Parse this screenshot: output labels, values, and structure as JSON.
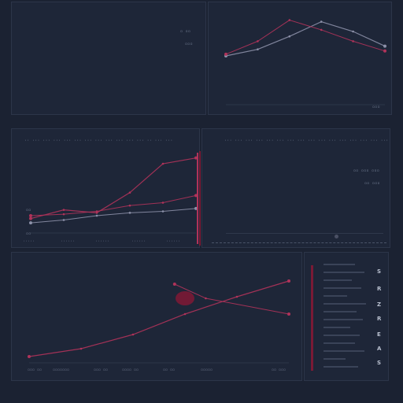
{
  "colors": {
    "background": "#1b2232",
    "panel": "#1e2638",
    "grid": "#2c3549",
    "series_primary": "#b0335a",
    "series_secondary": "#8c90a8",
    "accent_dark_red": "#7a1a35",
    "text": "#7f8aa0"
  },
  "panels": {
    "top_left": {
      "labels": [
        "▫ ▫▫",
        "▫▫▫"
      ]
    },
    "top_right": {
      "footer_label": "▫▫▫"
    },
    "mid_left": {
      "header_label": "·· ··· ··· ··· ··· ··· ··· ··· ··· ··· ··· ··· ·· ··· ···",
      "y_labels": [
        "▫▫",
        "▫▫"
      ],
      "x_labels": [
        "·····",
        "······",
        "······",
        "······",
        "······"
      ],
      "side_label": "▫▫ ▫▫"
    },
    "mid_right": {
      "header_label": "··· ··· ··· ··· ··· ··· ··· ··· ··· ··· ··· ··· ··· ··· ··· ···",
      "labels": [
        "▫▫ ▫▫▫ ▫▫▫",
        "▫▫ ▫▫▫"
      ]
    },
    "bottom_left": {
      "x_labels": [
        "▫▫▫ ▫▫",
        "▫▫▫▫▫▫▫",
        "▫▫▫ ▫▫",
        "▫▫▫▫ ▫▫",
        "▫▫ ▫▫",
        "▫▫▫▫▫",
        "▫▫ ▫▫▫"
      ]
    },
    "bottom_right": {
      "glyphs": [
        "S",
        "R",
        "Z",
        "R",
        "E",
        "A",
        "S"
      ]
    }
  },
  "chart_data": [
    {
      "type": "line",
      "series": [
        {
          "values": [
            [
              0,
              3.0
            ],
            [
              1,
              3.4
            ],
            [
              2,
              4.2
            ],
            [
              3,
              5.1
            ],
            [
              4,
              4.5
            ],
            [
              5,
              3.6
            ]
          ]
        },
        {
          "values": [
            [
              0,
              3.1
            ],
            [
              1,
              3.9
            ],
            [
              2,
              5.2
            ],
            [
              3,
              4.6
            ],
            [
              4,
              3.9
            ],
            [
              5,
              3.3
            ]
          ]
        }
      ],
      "xlim": [
        0,
        5
      ],
      "ylim": [
        0,
        6
      ]
    },
    {
      "type": "line",
      "series": [
        {
          "values": [
            [
              0,
              1.0
            ],
            [
              1,
              1.6
            ],
            [
              2,
              1.4
            ],
            [
              3,
              2.8
            ],
            [
              4,
              4.8
            ],
            [
              5,
              5.2
            ]
          ]
        },
        {
          "values": [
            [
              0,
              1.2
            ],
            [
              1,
              1.3
            ],
            [
              2,
              1.5
            ],
            [
              3,
              1.9
            ],
            [
              4,
              2.1
            ],
            [
              5,
              2.6
            ]
          ]
        },
        {
          "values": [
            [
              0,
              0.7
            ],
            [
              1,
              0.9
            ],
            [
              2,
              1.2
            ],
            [
              3,
              1.4
            ],
            [
              4,
              1.5
            ],
            [
              5,
              1.7
            ]
          ]
        }
      ],
      "xlim": [
        0,
        5
      ],
      "ylim": [
        0,
        6
      ]
    },
    {
      "type": "line",
      "series": [
        {
          "values": [
            [
              0,
              0.4
            ],
            [
              1,
              0.9
            ],
            [
              2,
              1.8
            ],
            [
              3,
              3.1
            ],
            [
              4,
              4.2
            ],
            [
              5,
              5.2
            ]
          ]
        },
        {
          "values": [
            [
              2.8,
              5.0
            ],
            [
              3.4,
              4.1
            ],
            [
              5.0,
              3.1
            ]
          ]
        }
      ],
      "xlim": [
        0,
        5
      ],
      "ylim": [
        0,
        6
      ]
    }
  ]
}
